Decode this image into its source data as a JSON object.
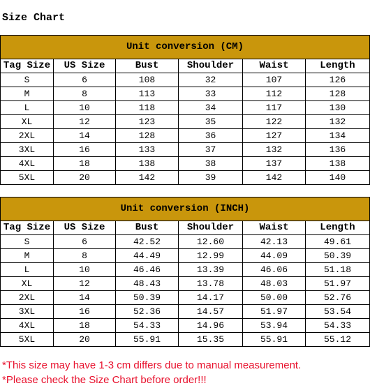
{
  "title": "Size Chart",
  "tables": [
    {
      "caption": "Unit conversion (CM)",
      "columns": [
        "Tag Size",
        "US Size",
        "Bust",
        "Shoulder",
        "Waist",
        "Length"
      ],
      "rows": [
        [
          "S",
          "6",
          "108",
          "32",
          "107",
          "126"
        ],
        [
          "M",
          "8",
          "113",
          "33",
          "112",
          "128"
        ],
        [
          "L",
          "10",
          "118",
          "34",
          "117",
          "130"
        ],
        [
          "XL",
          "12",
          "123",
          "35",
          "122",
          "132"
        ],
        [
          "2XL",
          "14",
          "128",
          "36",
          "127",
          "134"
        ],
        [
          "3XL",
          "16",
          "133",
          "37",
          "132",
          "136"
        ],
        [
          "4XL",
          "18",
          "138",
          "38",
          "137",
          "138"
        ],
        [
          "5XL",
          "20",
          "142",
          "39",
          "142",
          "140"
        ]
      ]
    },
    {
      "caption": "Unit conversion (INCH)",
      "columns": [
        "Tag Size",
        "US Size",
        "Bust",
        "Shoulder",
        "Waist",
        "Length"
      ],
      "rows": [
        [
          "S",
          "6",
          "42.52",
          "12.60",
          "42.13",
          "49.61"
        ],
        [
          "M",
          "8",
          "44.49",
          "12.99",
          "44.09",
          "50.39"
        ],
        [
          "L",
          "10",
          "46.46",
          "13.39",
          "46.06",
          "51.18"
        ],
        [
          "XL",
          "12",
          "48.43",
          "13.78",
          "48.03",
          "51.97"
        ],
        [
          "2XL",
          "14",
          "50.39",
          "14.17",
          "50.00",
          "52.76"
        ],
        [
          "3XL",
          "16",
          "52.36",
          "14.57",
          "51.97",
          "53.54"
        ],
        [
          "4XL",
          "18",
          "54.33",
          "14.96",
          "53.94",
          "54.33"
        ],
        [
          "5XL",
          "20",
          "55.91",
          "15.35",
          "55.91",
          "55.12"
        ]
      ]
    }
  ],
  "notes": [
    "*This size may have 1-3 cm differs due to manual measurement.",
    "*Please check the Size Chart before order!!!"
  ]
}
